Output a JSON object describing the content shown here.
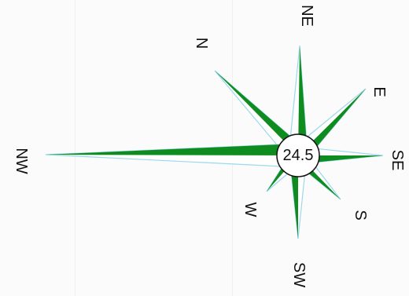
{
  "center_value": "24.5",
  "directions": {
    "n": "N",
    "ne": "NE",
    "e": "E",
    "se": "SE",
    "s": "S",
    "sw": "SW",
    "w": "W",
    "nw": "NW"
  },
  "colors": {
    "fill": "#0f8c1f",
    "outline": "#9ad8ea"
  }
}
